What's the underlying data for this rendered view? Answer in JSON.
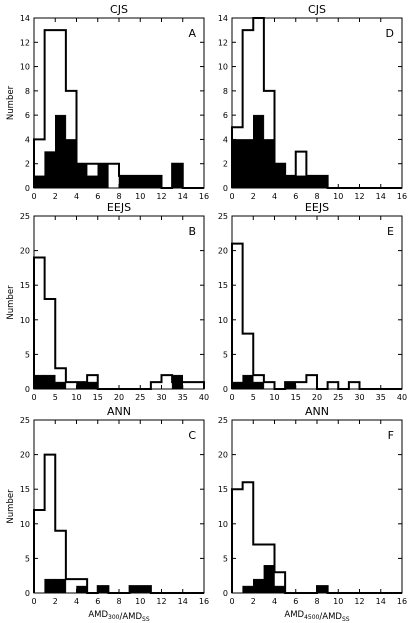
{
  "chart_data": [
    {
      "panel": "A",
      "type": "bar",
      "title": "CJS",
      "ylabel": "Number",
      "xlabel": "",
      "xlim": [
        0,
        16
      ],
      "ylim": [
        0,
        14
      ],
      "xticks": [
        0,
        2,
        4,
        6,
        8,
        10,
        12,
        14,
        16
      ],
      "yticks": [
        0,
        2,
        4,
        6,
        8,
        10,
        12,
        14
      ],
      "bin_edges": [
        0,
        1,
        2,
        3,
        4,
        5,
        6,
        7,
        8,
        9,
        10,
        11,
        12,
        13,
        14,
        15,
        16
      ],
      "series": [
        {
          "style": "outline",
          "values": [
            4,
            13,
            13,
            8,
            2,
            2,
            2,
            2,
            1,
            1,
            1,
            1,
            0,
            2,
            0,
            0
          ]
        },
        {
          "style": "filled",
          "values": [
            1,
            3,
            6,
            4,
            2,
            1,
            2,
            0,
            1,
            1,
            1,
            1,
            0,
            2,
            0,
            0
          ]
        }
      ]
    },
    {
      "panel": "D",
      "type": "bar",
      "title": "CJS",
      "ylabel": "",
      "xlabel": "",
      "xlim": [
        0,
        16
      ],
      "ylim": [
        0,
        14
      ],
      "xticks": [
        0,
        2,
        4,
        6,
        8,
        10,
        12,
        14,
        16
      ],
      "yticks": [
        0,
        2,
        4,
        6,
        8,
        10,
        12,
        14
      ],
      "bin_edges": [
        0,
        1,
        2,
        3,
        4,
        5,
        6,
        7,
        8,
        9,
        10,
        11,
        12,
        13,
        14,
        15,
        16
      ],
      "series": [
        {
          "style": "outline",
          "values": [
            5,
            13,
            14,
            8,
            2,
            1,
            3,
            1,
            1,
            0,
            0,
            0,
            0,
            0,
            0,
            0
          ]
        },
        {
          "style": "filled",
          "values": [
            4,
            4,
            6,
            4,
            2,
            1,
            1,
            1,
            1,
            0,
            0,
            0,
            0,
            0,
            0,
            0
          ]
        }
      ]
    },
    {
      "panel": "B",
      "type": "bar",
      "title": "EEJS",
      "ylabel": "Number",
      "xlabel": "",
      "xlim": [
        0,
        40
      ],
      "ylim": [
        0,
        25
      ],
      "xticks": [
        0,
        5,
        10,
        15,
        20,
        25,
        30,
        35,
        40
      ],
      "yticks": [
        0,
        5,
        10,
        15,
        20,
        25
      ],
      "bin_edges": [
        0,
        2.5,
        5,
        7.5,
        10,
        12.5,
        15,
        17.5,
        20,
        22.5,
        25,
        27.5,
        30,
        32.5,
        35,
        37.5,
        40
      ],
      "series": [
        {
          "style": "outline",
          "values": [
            19,
            13,
            3,
            1,
            1,
            2,
            0,
            0,
            0,
            0,
            0,
            1,
            2,
            1,
            1,
            1
          ]
        },
        {
          "style": "filled",
          "values": [
            2,
            2,
            1,
            0,
            1,
            1,
            0,
            0,
            0,
            0,
            0,
            0,
            0,
            2,
            0,
            0
          ]
        }
      ]
    },
    {
      "panel": "E",
      "type": "bar",
      "title": "EEJS",
      "ylabel": "",
      "xlabel": "",
      "xlim": [
        0,
        40
      ],
      "ylim": [
        0,
        25
      ],
      "xticks": [
        0,
        5,
        10,
        15,
        20,
        25,
        30,
        35,
        40
      ],
      "yticks": [
        0,
        5,
        10,
        15,
        20,
        25
      ],
      "bin_edges": [
        0,
        2.5,
        5,
        7.5,
        10,
        12.5,
        15,
        17.5,
        20,
        22.5,
        25,
        27.5,
        30,
        32.5,
        35,
        37.5,
        40
      ],
      "series": [
        {
          "style": "outline",
          "values": [
            21,
            8,
            2,
            1,
            0,
            1,
            1,
            2,
            0,
            1,
            0,
            1,
            0,
            0,
            0,
            0
          ]
        },
        {
          "style": "filled",
          "values": [
            1,
            2,
            1,
            0,
            0,
            1,
            0,
            0,
            0,
            0,
            0,
            0,
            0,
            0,
            0,
            0
          ]
        }
      ]
    },
    {
      "panel": "C",
      "type": "bar",
      "title": "ANN",
      "ylabel": "Number",
      "xlabel": "AMD_300/AMD_SS",
      "xlim": [
        0,
        16
      ],
      "ylim": [
        0,
        25
      ],
      "xticks": [
        0,
        2,
        4,
        6,
        8,
        10,
        12,
        14,
        16
      ],
      "yticks": [
        0,
        5,
        10,
        15,
        20,
        25
      ],
      "bin_edges": [
        0,
        1,
        2,
        3,
        4,
        5,
        6,
        7,
        8,
        9,
        10,
        11,
        12,
        13,
        14,
        15,
        16
      ],
      "series": [
        {
          "style": "outline",
          "values": [
            12,
            20,
            9,
            2,
            2,
            0,
            1,
            0,
            0,
            1,
            1,
            0,
            0,
            0,
            0,
            0
          ]
        },
        {
          "style": "filled",
          "values": [
            0,
            2,
            2,
            0,
            1,
            0,
            1,
            0,
            0,
            1,
            1,
            0,
            0,
            0,
            0,
            0
          ]
        }
      ]
    },
    {
      "panel": "F",
      "type": "bar",
      "title": "ANN",
      "ylabel": "",
      "xlabel": "AMD_4500/AMD_SS",
      "xlim": [
        0,
        16
      ],
      "ylim": [
        0,
        25
      ],
      "xticks": [
        0,
        2,
        4,
        6,
        8,
        10,
        12,
        14,
        16
      ],
      "yticks": [
        0,
        5,
        10,
        15,
        20,
        25
      ],
      "bin_edges": [
        0,
        1,
        2,
        3,
        4,
        5,
        6,
        7,
        8,
        9,
        10,
        11,
        12,
        13,
        14,
        15,
        16
      ],
      "series": [
        {
          "style": "outline",
          "values": [
            15,
            16,
            7,
            7,
            3,
            0,
            0,
            0,
            1,
            0,
            0,
            0,
            0,
            0,
            0,
            0
          ]
        },
        {
          "style": "filled",
          "values": [
            0,
            1,
            2,
            4,
            1,
            0,
            0,
            0,
            1,
            0,
            0,
            0,
            0,
            0,
            0,
            0
          ]
        }
      ]
    }
  ],
  "colors": {
    "fill": "#000000",
    "outline": "#000000",
    "background": "#ffffff"
  }
}
